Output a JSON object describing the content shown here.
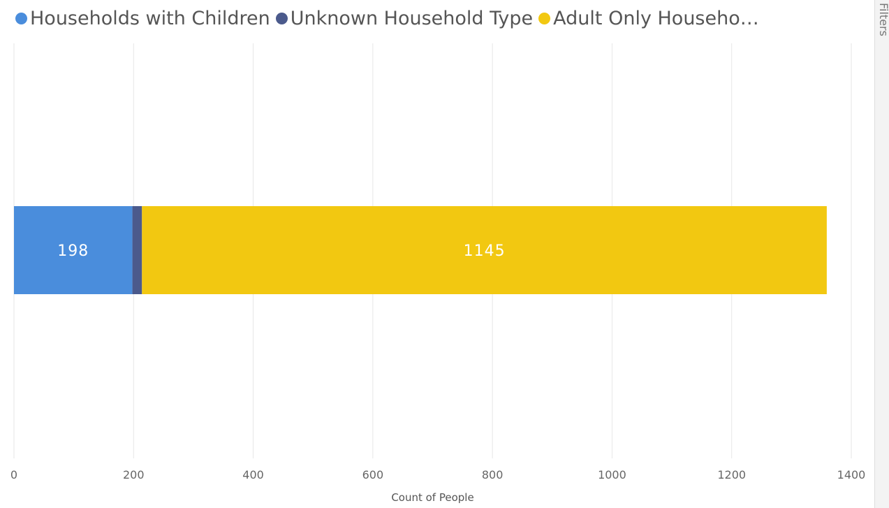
{
  "chart_data": {
    "type": "bar",
    "orientation": "horizontal",
    "stacked": true,
    "categories": [
      ""
    ],
    "series": [
      {
        "name": "Households with Children",
        "values": [
          198
        ],
        "color": "#4a8ddc",
        "data_label": "198"
      },
      {
        "name": "Unknown Household Type",
        "values": [
          16
        ],
        "color": "#4b5a8c",
        "data_label": ""
      },
      {
        "name": "Adult Only Househo…",
        "values": [
          1145
        ],
        "color": "#f2c811",
        "data_label": "1145"
      }
    ],
    "xlabel": "Count of People",
    "xlim": [
      0,
      1400
    ],
    "xticks": [
      "0",
      "200",
      "400",
      "600",
      "800",
      "1000",
      "1200",
      "1400"
    ],
    "grid": true,
    "legend_position": "top-left"
  },
  "side_panel": {
    "label": "Filters"
  }
}
